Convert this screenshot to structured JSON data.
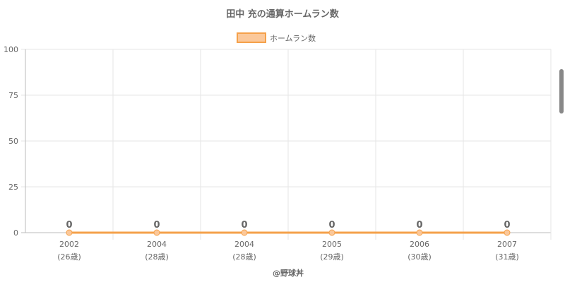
{
  "chart_data": {
    "type": "line",
    "title": "田中 充の通算ホームラン数",
    "categories": [
      "2002",
      "2004",
      "2004",
      "2005",
      "2006",
      "2007"
    ],
    "category_sublabels": [
      "(26歳)",
      "(28歳)",
      "(28歳)",
      "(29歳)",
      "(30歳)",
      "(31歳)"
    ],
    "series": [
      {
        "name": "ホームラン数",
        "values": [
          0,
          0,
          0,
          0,
          0,
          0
        ],
        "color": "#f5a14a",
        "fill": "#fbc89a"
      }
    ],
    "data_labels": [
      "0",
      "0",
      "0",
      "0",
      "0",
      "0"
    ],
    "y_ticks": [
      "0",
      "25",
      "50",
      "75",
      "100"
    ],
    "ylim": [
      0,
      100
    ],
    "grid": true,
    "legend_position": "top"
  },
  "credit": "@野球丼"
}
